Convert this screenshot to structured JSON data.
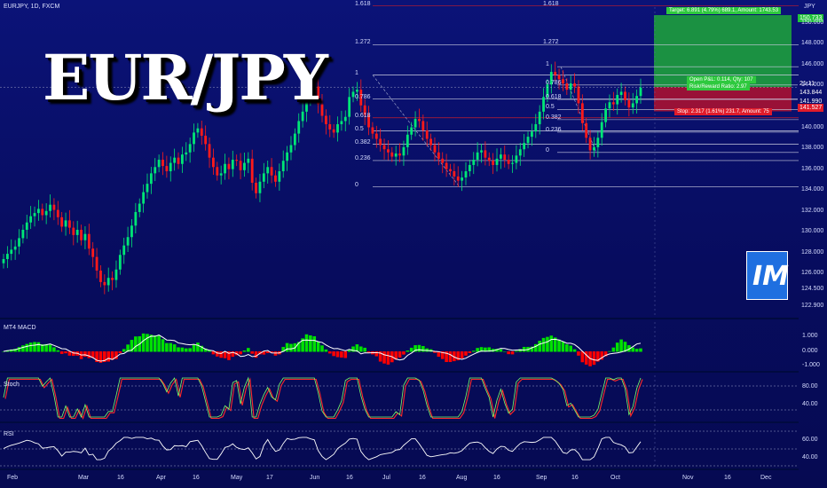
{
  "symbol_line": "EURJPY, 1D, FXCM",
  "big_title": "EUR/JPY",
  "logo_text": "IM",
  "currency_label": "JPY",
  "panels": {
    "macd": {
      "name": "MT4 MACD",
      "ticks": [
        "1.000",
        "0.000",
        "-1.000"
      ]
    },
    "stoch": {
      "name": "Stoch",
      "ticks": [
        "80.00",
        "40.00"
      ]
    },
    "rsi": {
      "name": "RSI",
      "ticks": [
        "60.00",
        "40.00"
      ]
    }
  },
  "price_axis_ticks": [
    "150.000",
    "148.000",
    "146.000",
    "144.000",
    "140.000",
    "138.000",
    "136.000",
    "134.000",
    "132.000",
    "130.000",
    "128.000",
    "126.000",
    "124.500",
    "122.900"
  ],
  "price_tags": {
    "target": "150.733",
    "countdown": "21:11",
    "current": "143.844",
    "mid": "141.990",
    "stop": "141.527"
  },
  "position_box": {
    "target_text": "Target: 6.891 (4.79%) 689.1, Amount: 1743.53",
    "open_text": "Open P&L: 0.114, Qty: 107",
    "ratio_text": "Risk/Reward Ratio: 2.97",
    "stop_text": "Stop: 2.317 (1.61%) 231.7, Amount: 75"
  },
  "fib_left": [
    "1.618",
    "1.272",
    "1",
    "0.786",
    "0.618",
    "0.5",
    "0.382",
    "0.236",
    "0"
  ],
  "fib_right": [
    "1.618",
    "1.272",
    "1",
    "0.786",
    "0.618",
    "0.5",
    "0.382",
    "0.236",
    "0"
  ],
  "fib_mid": [
    "0.786",
    "0.5",
    "0.382",
    "0.236"
  ],
  "time_axis": [
    "Feb",
    "Mar",
    "16",
    "Apr",
    "16",
    "May",
    "17",
    "Jun",
    "16",
    "Jul",
    "16",
    "Aug",
    "16",
    "Sep",
    "16",
    "Oct",
    "Nov",
    "16",
    "Dec"
  ],
  "colors": {
    "up": "#00e676",
    "down": "#ff1a1a",
    "bg": "#0a0f6e",
    "target_zone": "#1fa83a",
    "stop_zone": "#b3122e",
    "macd_pos": "#00e000",
    "macd_neg": "#ff0000"
  },
  "chart_data": {
    "type": "candlestick",
    "title": "EUR/JPY",
    "ylabel": "JPY",
    "ylim": [
      122.9,
      151.5
    ],
    "closes": [
      127.4,
      127.9,
      128.3,
      128.6,
      129.4,
      130.2,
      130.9,
      131.5,
      131.8,
      132.2,
      131.6,
      132.0,
      132.6,
      132.1,
      131.4,
      130.5,
      131.1,
      130.4,
      129.7,
      130.2,
      129.2,
      129.8,
      128.4,
      127.6,
      126.3,
      125.2,
      124.9,
      125.6,
      125.4,
      126.4,
      127.8,
      128.7,
      129.5,
      130.6,
      131.9,
      132.7,
      133.8,
      134.6,
      135.6,
      136.2,
      136.9,
      136.3,
      135.8,
      136.6,
      137.1,
      136.5,
      137.4,
      137.6,
      138.4,
      139.5,
      139.9,
      139.2,
      138.4,
      137.1,
      136.2,
      135.4,
      135.6,
      136.5,
      136.0,
      136.9,
      136.8,
      135.9,
      136.6,
      137.0,
      134.7,
      133.7,
      134.8,
      135.6,
      136.2,
      135.4,
      134.8,
      135.8,
      136.8,
      137.6,
      138.3,
      139.4,
      140.6,
      141.5,
      142.8,
      143.3,
      143.9,
      142.2,
      141.1,
      140.3,
      139.8,
      139.5,
      140.3,
      140.6,
      141.0,
      142.9,
      143.4,
      143.6,
      142.1,
      141.2,
      140.0,
      139.4,
      138.9,
      138.3,
      137.9,
      137.6,
      137.2,
      137.5,
      137.3,
      138.1,
      139.3,
      140.0,
      140.8,
      140.6,
      139.7,
      138.9,
      138.3,
      137.6,
      137.0,
      136.6,
      136.0,
      135.8,
      135.3,
      134.9,
      135.2,
      135.8,
      136.4,
      136.9,
      137.6,
      137.8,
      137.1,
      136.8,
      136.4,
      137.0,
      137.4,
      136.9,
      136.5,
      136.6,
      137.3,
      137.9,
      138.5,
      139.1,
      139.6,
      140.3,
      141.5,
      142.9,
      144.1,
      145.3,
      145.0,
      144.6,
      144.2,
      143.6,
      144.2,
      143.9,
      142.3,
      140.4,
      139.0,
      137.8,
      138.1,
      139.0,
      140.5,
      141.8,
      142.4,
      142.2,
      143.1,
      143.4,
      142.6,
      141.9,
      142.3,
      143.0,
      143.8
    ],
    "fib_levels": [
      0,
      0.236,
      0.382,
      0.5,
      0.618,
      0.786,
      1,
      1.272,
      1.618
    ],
    "target_price": 150.733,
    "current_price": 143.844,
    "stop_price": 141.527,
    "risk_reward": 2.97,
    "x_ticks": [
      "Feb",
      "Mar",
      "16",
      "Apr",
      "16",
      "May",
      "17",
      "Jun",
      "16",
      "Jul",
      "16",
      "Aug",
      "16",
      "Sep",
      "16",
      "Oct",
      "Nov",
      "16",
      "Dec"
    ]
  }
}
